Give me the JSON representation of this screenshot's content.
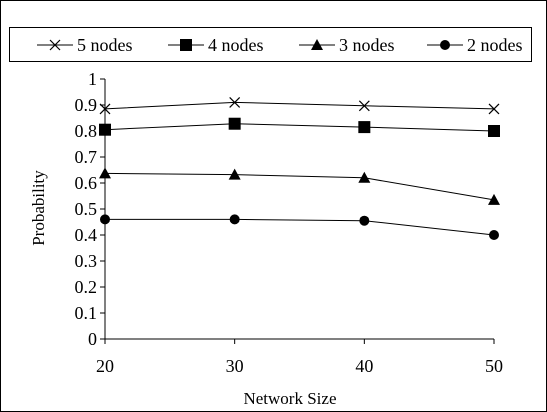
{
  "chart_data": {
    "type": "line",
    "title": "",
    "xlabel": "Network Size",
    "ylabel": "Probability",
    "x": [
      20,
      30,
      40,
      50
    ],
    "x_tick_labels": [
      "20",
      "30",
      "40",
      "50"
    ],
    "ylim": [
      0,
      1
    ],
    "y_tick_labels": [
      "0",
      "0.1",
      "0.2",
      "0.3",
      "0.4",
      "0.5",
      "0.6",
      "0.7",
      "0.8",
      "0.9",
      "1"
    ],
    "grid": false,
    "legend_position": "top",
    "series": [
      {
        "name": "5 nodes",
        "marker": "x-cross",
        "values": [
          0.885,
          0.91,
          0.897,
          0.885
        ]
      },
      {
        "name": "4 nodes",
        "marker": "square",
        "values": [
          0.805,
          0.828,
          0.815,
          0.8
        ]
      },
      {
        "name": "3 nodes",
        "marker": "triangle",
        "values": [
          0.637,
          0.632,
          0.62,
          0.535
        ]
      },
      {
        "name": "2 nodes",
        "marker": "circle",
        "values": [
          0.46,
          0.46,
          0.455,
          0.4
        ]
      }
    ],
    "colors": {
      "line": "#000000",
      "background": "#ffffff"
    }
  }
}
